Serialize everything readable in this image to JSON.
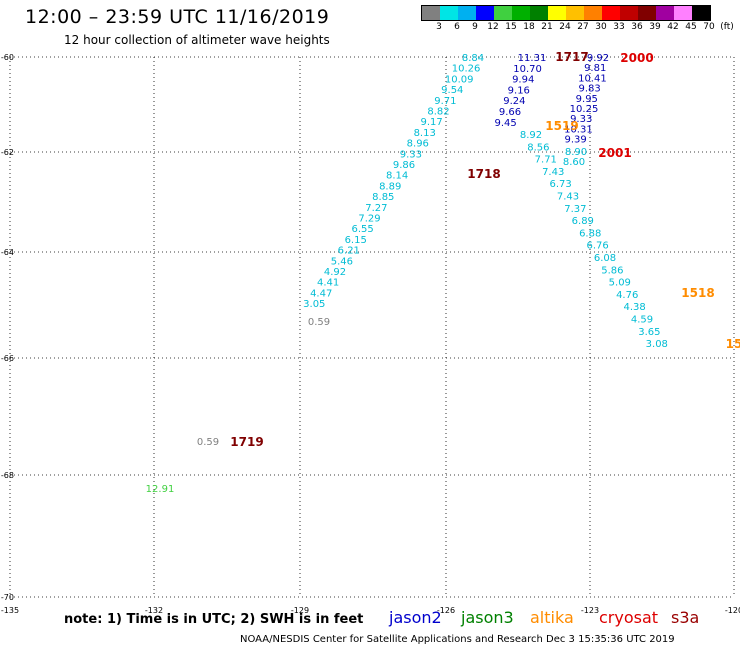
{
  "header": {
    "title": "12:00 – 23:59 UTC 11/16/2019",
    "subtitle": "12 hour collection of altimeter wave heights"
  },
  "colorbar": {
    "colors": [
      "#808080",
      "#00e5e5",
      "#00b0f0",
      "#0000ff",
      "#40d040",
      "#00b000",
      "#008000",
      "#ffff00",
      "#ffc000",
      "#ff8000",
      "#ff0000",
      "#c00000",
      "#800000",
      "#a000a0",
      "#ff80ff",
      "#000000"
    ],
    "labels": [
      "3",
      "6",
      "9",
      "12",
      "15",
      "18",
      "21",
      "24",
      "27",
      "30",
      "33",
      "36",
      "39",
      "42",
      "45",
      "70",
      "(ft)"
    ]
  },
  "axes": {
    "lat_labels": [
      "-60",
      "-62",
      "-64",
      "-66",
      "-68",
      "-70"
    ],
    "lon_labels": [
      "-135",
      "-132",
      "-129",
      "-126",
      "-123",
      "-120"
    ]
  },
  "satellites": {
    "jason2": {
      "name": "jason2",
      "color": "#0000cc"
    },
    "jason3": {
      "name": "jason3",
      "color": "#008000"
    },
    "altika": {
      "name": "altika",
      "color": "#ff8c00"
    },
    "cryosat": {
      "name": "cryosat",
      "color": "#dd0000"
    },
    "s3a": {
      "name": "s3a",
      "color": "#990000"
    }
  },
  "tracks": [
    {
      "color": "#00bcd4",
      "values": [
        "8.84",
        "10.26",
        "10.09",
        "9.54",
        "9.71",
        "8.82",
        "9.17",
        "8.13",
        "8.96",
        "9.33",
        "9.86",
        "8.14",
        "8.89",
        "8.85",
        "7.27",
        "7.29",
        "6.55",
        "6.15",
        "6.21",
        "5.46",
        "4.92",
        "4.41",
        "4.47",
        "3.05"
      ]
    },
    {
      "color": "#0000b0",
      "values": [
        "11.31",
        "10.70",
        "9.94",
        "9.16",
        "9.24",
        "9.66",
        "9.45"
      ]
    },
    {
      "color": "#00bcd4",
      "values": [
        "8.92",
        "8.56",
        "7.71",
        "7.43",
        "6.73",
        "7.43",
        "7.37",
        "6.89",
        "6.88",
        "6.76",
        "6.08",
        "5.86",
        "5.09",
        "4.76",
        "4.38",
        "4.59",
        "3.65",
        "3.08"
      ]
    },
    {
      "color": "#0000b0",
      "values": [
        "9.92",
        "9.81",
        "10.41",
        "9.83",
        "9.95",
        "10.25",
        "9.33",
        "10.31",
        "9.39"
      ]
    },
    {
      "color": "#00bcd4",
      "values": [
        "8.90",
        "8.60"
      ]
    },
    {
      "color": "#808080",
      "values": [
        "0.59",
        "0.59"
      ]
    },
    {
      "color": "#40d040",
      "values": [
        "12.91"
      ]
    }
  ],
  "pass_times": [
    {
      "value": "1717",
      "color": "#800000"
    },
    {
      "value": "2000",
      "color": "#dd0000"
    },
    {
      "value": "1519",
      "color": "#ff8c00"
    },
    {
      "value": "2001",
      "color": "#dd0000"
    },
    {
      "value": "1718",
      "color": "#800000"
    },
    {
      "value": "1518",
      "color": "#ff8c00"
    },
    {
      "value": "15",
      "color": "#ff8c00"
    },
    {
      "value": "1719",
      "color": "#800000"
    }
  ],
  "footer": {
    "note": "note:  1)  Time is in UTC;  2)  SWH is in feet",
    "credit": "NOAA/NESDIS Center for Satellite Applications and Research     Dec  3  15:35:36  UTC  2019"
  }
}
